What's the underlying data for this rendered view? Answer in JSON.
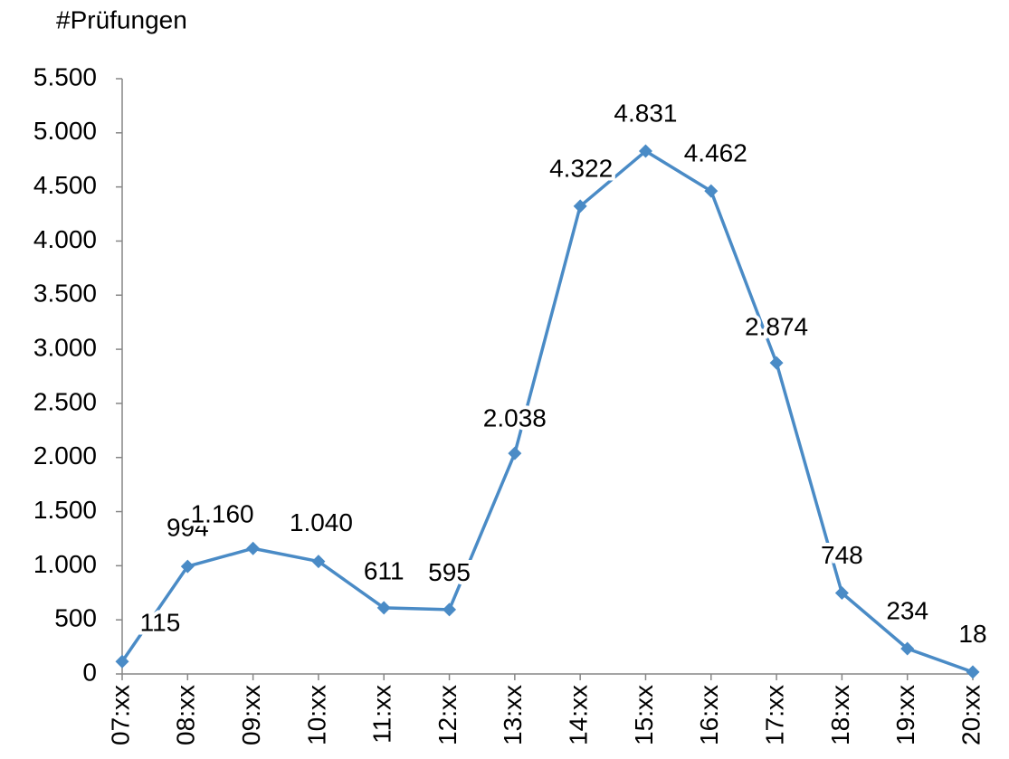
{
  "chart_data": {
    "type": "line",
    "y_axis_label": "#Prüfungen",
    "categories": [
      "07:xx",
      "08:xx",
      "09:xx",
      "10:xx",
      "11:xx",
      "12:xx",
      "13:xx",
      "14:xx",
      "15:xx",
      "16:xx",
      "17:xx",
      "18:xx",
      "19:xx",
      "20:xx"
    ],
    "series": [
      {
        "name": "Prüfungen",
        "color": "#4a8bc6",
        "values": [
          115,
          994,
          1160,
          1040,
          611,
          595,
          2038,
          4322,
          4831,
          4462,
          2874,
          748,
          234,
          18
        ],
        "value_labels": [
          "115",
          "994",
          "1.160",
          "1.040",
          "611",
          "595",
          "2.038",
          "4.322",
          "4.831",
          "4.462",
          "2.874",
          "748",
          "234",
          "18"
        ]
      }
    ],
    "ylim": [
      0,
      5500
    ],
    "yticks": [
      0,
      500,
      {
        "value": 1000,
        "label": "1.000"
      },
      {
        "value": 1500,
        "label": "1.500"
      },
      {
        "value": 2000,
        "label": "2.000"
      },
      {
        "value": 2500,
        "label": "2.500"
      },
      {
        "value": 3000,
        "label": "3.000"
      },
      {
        "value": 3500,
        "label": "3.500"
      },
      {
        "value": 4000,
        "label": "4.000"
      },
      {
        "value": 4500,
        "label": "4.500"
      },
      {
        "value": 5000,
        "label": "5.000"
      },
      {
        "value": 5500,
        "label": "5.500"
      }
    ]
  }
}
